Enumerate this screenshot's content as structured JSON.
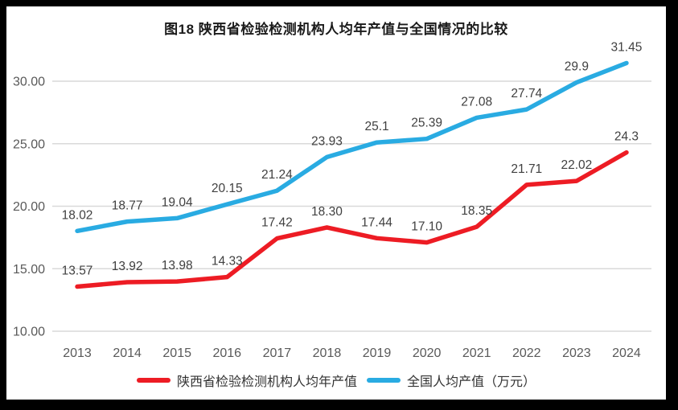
{
  "title": "图18 陕西省检验检测机构人均年产值与全国情况的比较",
  "colors": {
    "frame": "#000000",
    "background": "#ffffff",
    "grid": "#d9d9d9",
    "axis_text": "#595959",
    "label_text": "#404040",
    "title_text": "#1a1a1a",
    "shaanxi_red": "#ed1c24",
    "national_blue": "#29abe2"
  },
  "chart_data": {
    "type": "line",
    "title": "图18 陕西省检验检测机构人均年产值与全国情况的比较",
    "xlabel": "",
    "ylabel": "",
    "grid": true,
    "legend_position": "bottom",
    "ylim": [
      10,
      30
    ],
    "yticks": [
      "30.00",
      "25.00",
      "20.00",
      "15.00",
      "10.00"
    ],
    "categories": [
      "2013",
      "2014",
      "2015",
      "2016",
      "2017",
      "2018",
      "2019",
      "2020",
      "2021",
      "2022",
      "2023",
      "2024"
    ],
    "series": [
      {
        "name": "陕西省检验检测机构人均年产值",
        "color": "#ed1c24",
        "values": [
          13.57,
          13.92,
          13.98,
          14.33,
          17.42,
          18.3,
          17.44,
          17.1,
          18.35,
          21.71,
          22.02,
          24.3
        ],
        "labels": [
          "13.57",
          "13.92",
          "13.98",
          "14.33",
          "17.42",
          "18.30",
          "17.44",
          "17.10",
          "18.35",
          "21.71",
          "22.02",
          "24.3"
        ]
      },
      {
        "name": "全国人均产值（万元）",
        "color": "#29abe2",
        "values": [
          18.02,
          18.77,
          19.04,
          20.15,
          21.24,
          23.93,
          25.1,
          25.39,
          27.08,
          27.74,
          29.9,
          31.45
        ],
        "labels": [
          "18.02",
          "18.77",
          "19.04",
          "20.15",
          "21.24",
          "23.93",
          "25.1",
          "25.39",
          "27.08",
          "27.74",
          "29.9",
          "31.45"
        ]
      }
    ]
  },
  "legend": {
    "items": [
      {
        "label": "陕西省检验检测机构人均年产值",
        "color": "#ed1c24"
      },
      {
        "label": "全国人均产值（万元）",
        "color": "#29abe2"
      }
    ]
  }
}
